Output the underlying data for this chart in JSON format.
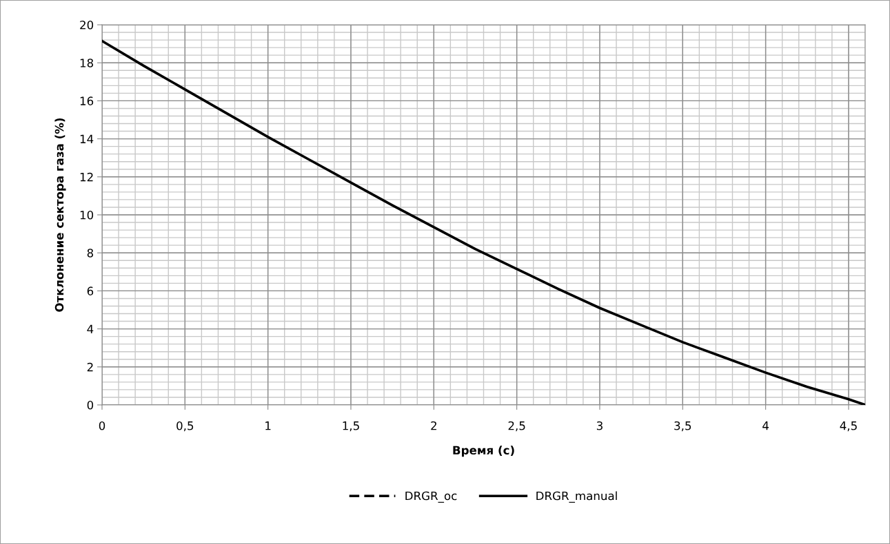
{
  "chart_data": {
    "type": "line",
    "xlabel": "Время (с)",
    "ylabel": "Отклонение сектора газа (%)",
    "x": [
      0,
      0.25,
      0.5,
      0.75,
      1,
      1.25,
      1.5,
      1.75,
      2,
      2.25,
      2.5,
      2.75,
      3,
      3.25,
      3.5,
      3.75,
      4,
      4.25,
      4.5,
      4.6
    ],
    "series": [
      {
        "name": "DRGR_oc",
        "color": "#000000",
        "line_style": "dashed",
        "values": [
          null,
          null,
          null,
          null,
          null,
          null,
          null,
          null,
          null,
          null,
          null,
          null,
          null,
          null,
          null,
          null,
          null,
          null,
          null,
          null
        ]
      },
      {
        "name": "DRGR_manual",
        "color": "#000000",
        "line_style": "solid",
        "values": [
          19.15,
          17.85,
          16.6,
          15.35,
          14.1,
          12.9,
          11.7,
          10.5,
          9.35,
          8.2,
          7.15,
          6.1,
          5.1,
          4.2,
          3.3,
          2.5,
          1.7,
          0.95,
          0.3,
          0
        ]
      }
    ],
    "xlim": [
      0,
      4.6
    ],
    "xticks": [
      0,
      {
        "value": 0.5,
        "label": "0,5"
      },
      1,
      {
        "value": 1.5,
        "label": "1,5"
      },
      2,
      {
        "value": 2.5,
        "label": "2,5"
      },
      3,
      {
        "value": 3.5,
        "label": "3,5"
      },
      4,
      {
        "value": 4.5,
        "label": "4,5"
      }
    ],
    "ylim": [
      0,
      20
    ],
    "yticks": [
      0,
      2,
      4,
      6,
      8,
      10,
      12,
      14,
      16,
      18,
      20
    ],
    "grid": true,
    "legend": "bottom",
    "marker": "none"
  }
}
